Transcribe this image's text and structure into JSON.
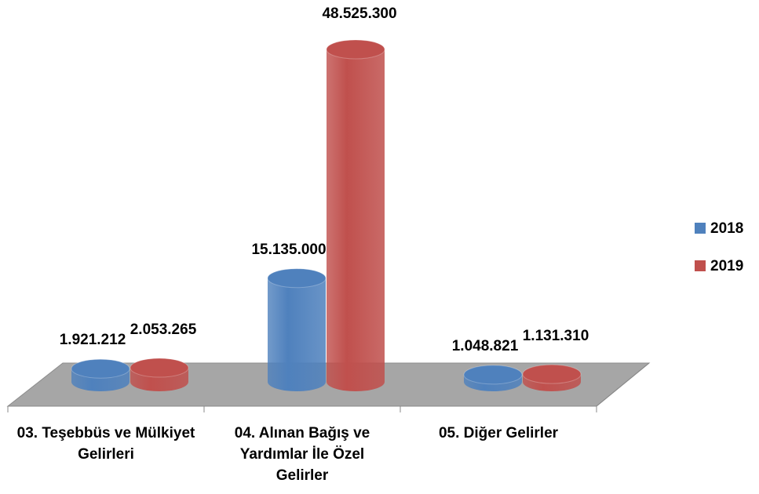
{
  "chart_data": {
    "type": "bar3d",
    "categories": [
      "03. Teşebbüs ve Mülkiyet Gelirleri",
      "04. Alınan Bağış ve Yardımlar İle Özel Gelirler",
      "05. Diğer Gelirler"
    ],
    "series": [
      {
        "name": "2018",
        "color": "#4f81bd",
        "values": [
          1921212,
          15135000,
          1048821
        ],
        "value_labels": [
          "1.921.212",
          "15.135.000",
          "1.048.821"
        ]
      },
      {
        "name": "2019",
        "color": "#c0504d",
        "values": [
          2053265,
          48525300,
          1131310
        ],
        "value_labels": [
          "2.053.265",
          "48.525.300",
          "1.131.310"
        ]
      }
    ],
    "legend": "right"
  }
}
